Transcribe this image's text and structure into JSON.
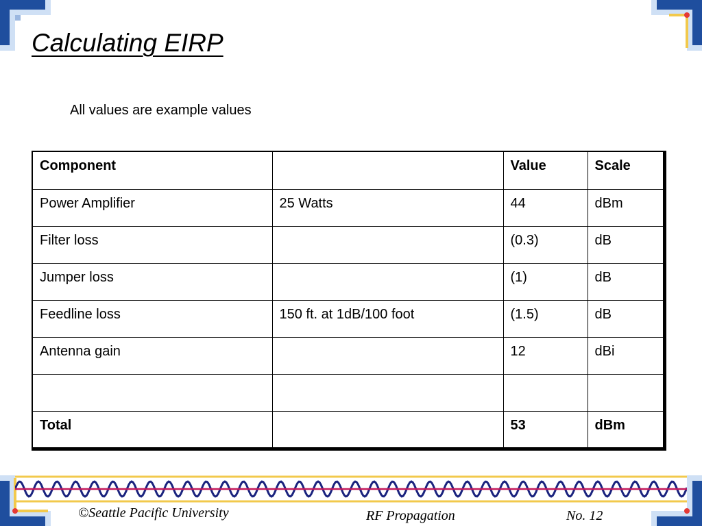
{
  "slide": {
    "title": "Calculating EIRP",
    "subtitle": "All values are example values"
  },
  "table": {
    "header": [
      "Component",
      "",
      "Value",
      "Scale"
    ],
    "rows": [
      [
        "Power Amplifier",
        "25 Watts",
        "44",
        "dBm"
      ],
      [
        "Filter loss",
        "",
        "(0.3)",
        "dB"
      ],
      [
        "Jumper loss",
        "",
        "(1)",
        "dB"
      ],
      [
        "Feedline loss",
        "150 ft. at 1dB/100 foot",
        "(1.5)",
        "dB"
      ],
      [
        "Antenna gain",
        "",
        "12",
        "dBi"
      ],
      [
        "",
        "",
        "",
        ""
      ]
    ],
    "total": [
      "Total",
      "",
      "53",
      "dBm"
    ]
  },
  "footer": {
    "copyright": "©Seattle Pacific University",
    "course": "RF Propagation",
    "page": "No. 12"
  },
  "colors": {
    "corner_blue": "#1f4e9e",
    "corner_light": "#cfe0f5",
    "band_yellow": "#f2c94c",
    "wave_navy": "#1a237e",
    "line_magenta": "#c2185b"
  }
}
